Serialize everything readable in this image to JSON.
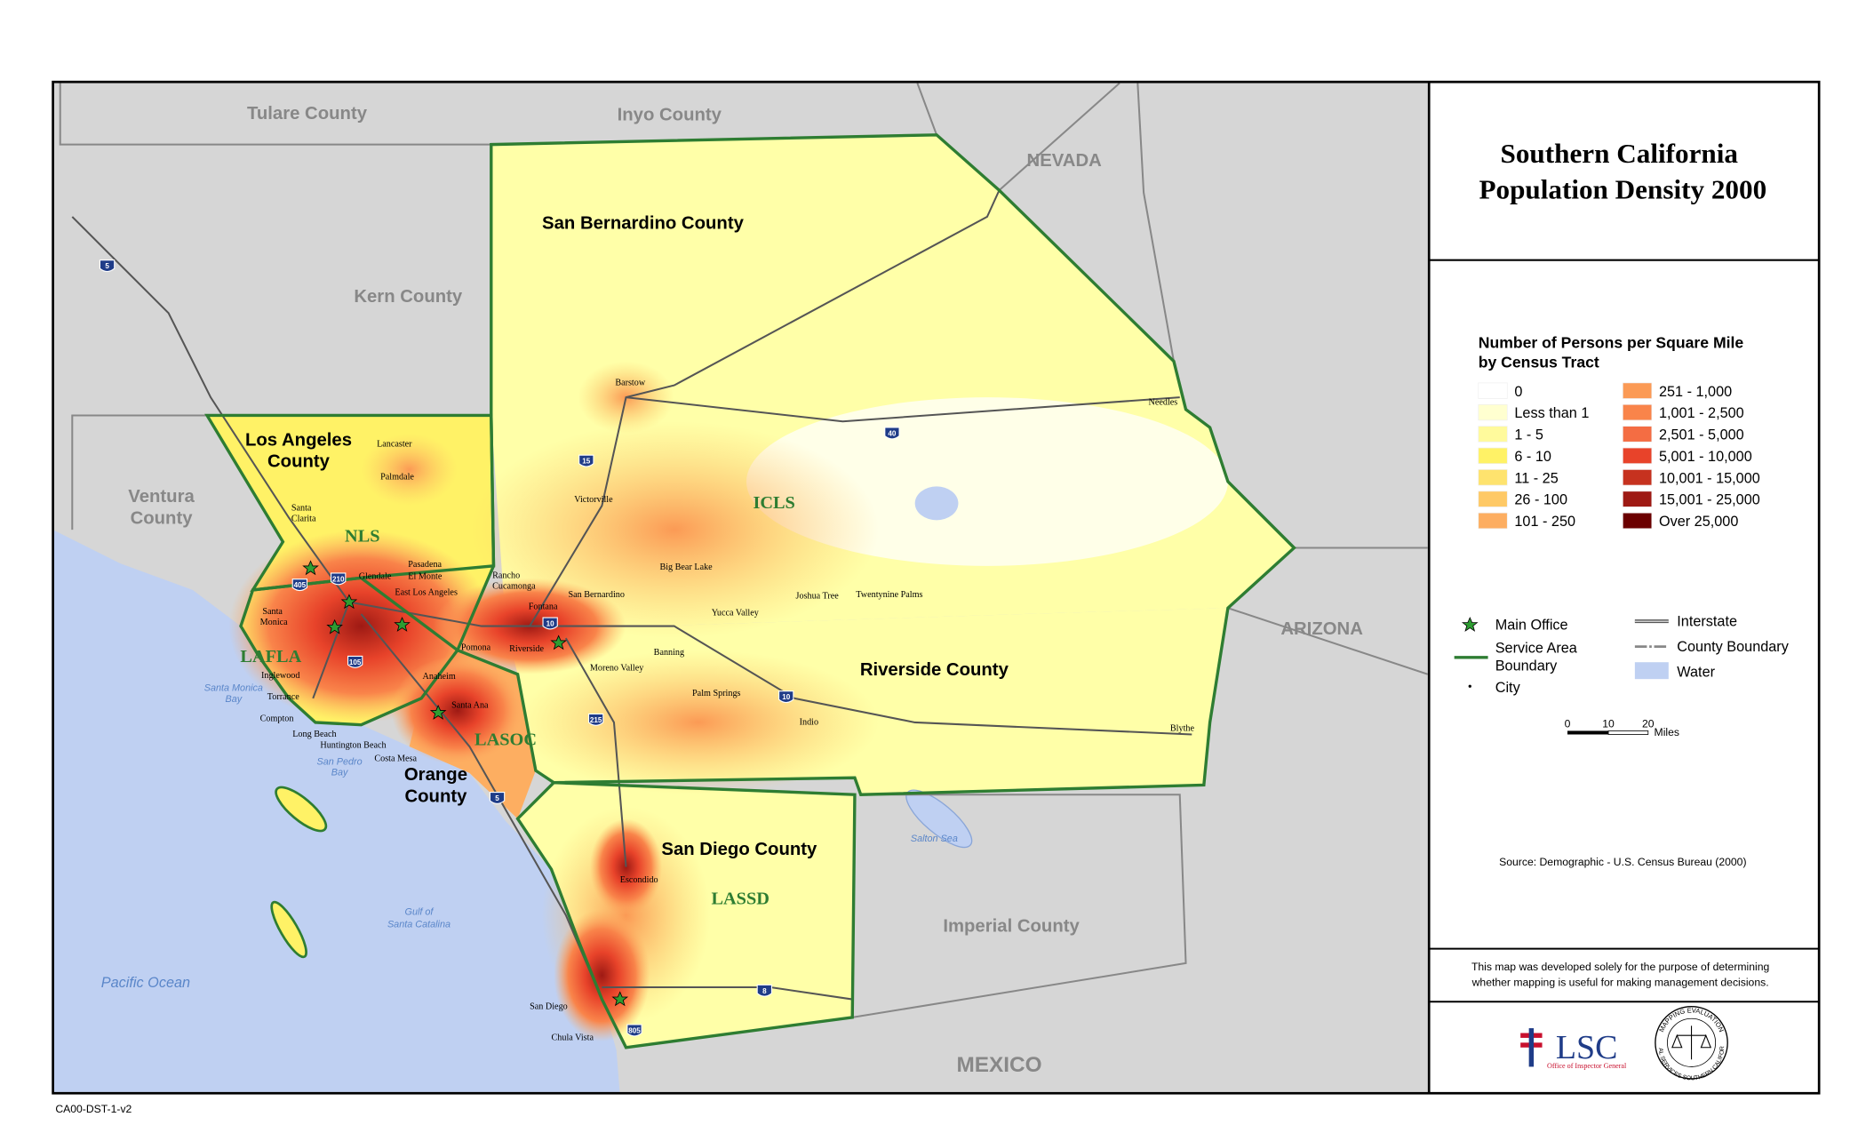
{
  "title": [
    "Southern California",
    "Population Density 2000"
  ],
  "legend": {
    "heading": [
      "Number of Persons per Square Mile",
      "by Census Tract"
    ],
    "classes": [
      {
        "label": "0",
        "color": "#ffffff"
      },
      {
        "label": "Less than 1",
        "color": "#ffffd0"
      },
      {
        "label": "1 - 5",
        "color": "#fffa9c"
      },
      {
        "label": "6 - 10",
        "color": "#fff266"
      },
      {
        "label": "11 - 25",
        "color": "#fee36e"
      },
      {
        "label": "26 - 100",
        "color": "#fec966"
      },
      {
        "label": "101 - 250",
        "color": "#fdae61"
      },
      {
        "label": "251 - 1,000",
        "color": "#fb9a55"
      },
      {
        "label": "1,001 - 2,500",
        "color": "#f9844a"
      },
      {
        "label": "2,501 - 5,000",
        "color": "#f46d43"
      },
      {
        "label": "5,001 - 10,000",
        "color": "#e8432a"
      },
      {
        "label": "10,001 - 15,000",
        "color": "#c6321f"
      },
      {
        "label": "15,001 - 25,000",
        "color": "#9e1a14"
      },
      {
        "label": "Over 25,000",
        "color": "#6b0000"
      }
    ],
    "symbols": {
      "main_office": "Main Office",
      "service_area": [
        "Service Area",
        "Boundary"
      ],
      "city": "City",
      "interstate": "Interstate",
      "county_boundary": "County Boundary",
      "water": "Water"
    },
    "scale": {
      "ticks": [
        "0",
        "10",
        "20"
      ],
      "unit": "Miles"
    }
  },
  "source": "Source:  Demographic - U.S. Census Bureau (2000)",
  "disclaimer": [
    "This map was developed solely for the purpose of determining",
    "whether mapping is useful for making management decisions."
  ],
  "logo": {
    "lsc": "LSC",
    "lsc_sub": "Office of Inspector General",
    "seal_top": "MAPPING EVALUATION",
    "seal_bottom": "LEGAL SERVICES SOUTHERN CALIFORNIA"
  },
  "map_code": "CA00-DST-1-v2",
  "map": {
    "counties": [
      "Tulare County",
      "Inyo County",
      "Kern County",
      "San Bernardino County",
      "Riverside County",
      "San Diego County",
      "Imperial County"
    ],
    "counties_two_line": [
      [
        "Los Angeles",
        "County"
      ],
      [
        "Ventura",
        "County"
      ],
      [
        "Orange",
        "County"
      ]
    ],
    "states": [
      "NEVADA",
      "ARIZONA",
      "MEXICO"
    ],
    "water": [
      "Pacific Ocean",
      "Salton Sea"
    ],
    "water_two_line": [
      [
        "Gulf of",
        "Santa Catalina"
      ],
      [
        "Santa Monica",
        "Bay"
      ],
      [
        "San Pedro",
        "Bay"
      ]
    ],
    "service_areas": [
      "NLS",
      "ICLS",
      "LAFLA",
      "LASOC",
      "LASSD"
    ],
    "cities": [
      "Lancaster",
      "Palmdale",
      "Pasadena",
      "El Monte",
      "Glendale",
      "East Los Angeles",
      "Inglewood",
      "Torrance",
      "Compton",
      "Long Beach",
      "Huntington Beach",
      "Costa Mesa",
      "Santa Ana",
      "Anaheim",
      "Pomona",
      "Fontana",
      "San Bernardino",
      "Riverside",
      "Moreno Valley",
      "Banning",
      "Palm Springs",
      "Indio",
      "Barstow",
      "Victorville",
      "Big Bear Lake",
      "Joshua Tree",
      "Twentynine Palms",
      "Yucca Valley",
      "Needles",
      "Blythe",
      "Escondido",
      "San Diego",
      "Chula Vista"
    ],
    "cities_two_line": [
      [
        "Santa",
        "Clarita"
      ],
      [
        "Santa",
        "Monica"
      ],
      [
        "Rancho",
        "Cucamonga"
      ]
    ],
    "highways": [
      "5",
      "15",
      "40",
      "10",
      "210",
      "405",
      "105",
      "215",
      "10",
      "5",
      "8",
      "805"
    ]
  }
}
